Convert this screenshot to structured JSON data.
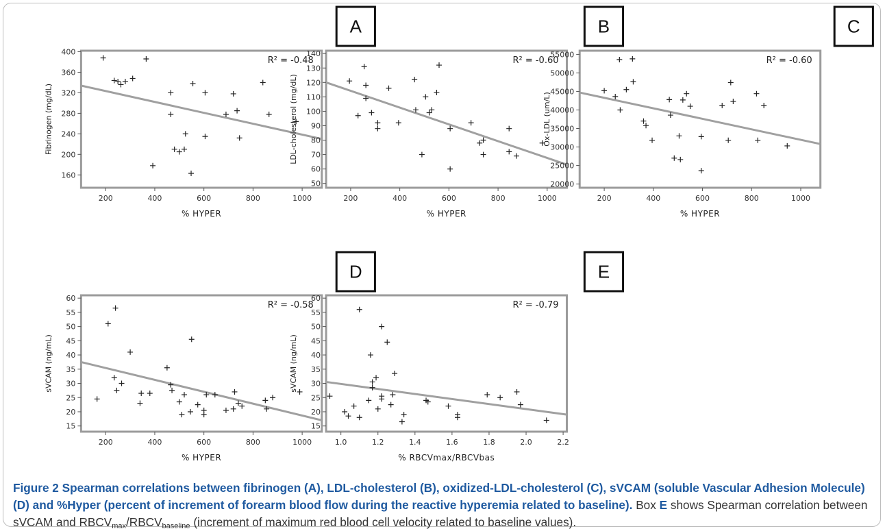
{
  "chart_data": [
    {
      "type": "scatter",
      "panel": "A",
      "xlabel": "% HYPER",
      "ylabel": "Fibrinogen (mg/dL)",
      "xlim": [
        100,
        1080
      ],
      "ylim": [
        135,
        402
      ],
      "xticks": [
        200,
        400,
        600,
        800,
        1000
      ],
      "yticks": [
        160,
        200,
        240,
        280,
        320,
        360,
        400
      ],
      "annotation": "R² = -0.48",
      "points": [
        [
          190,
          388
        ],
        [
          235,
          344
        ],
        [
          250,
          342
        ],
        [
          262,
          336
        ],
        [
          280,
          342
        ],
        [
          310,
          348
        ],
        [
          365,
          386
        ],
        [
          392,
          178
        ],
        [
          465,
          320
        ],
        [
          465,
          278
        ],
        [
          480,
          210
        ],
        [
          500,
          205
        ],
        [
          520,
          210
        ],
        [
          525,
          240
        ],
        [
          548,
          163
        ],
        [
          555,
          338
        ],
        [
          605,
          320
        ],
        [
          605,
          235
        ],
        [
          690,
          278
        ],
        [
          720,
          318
        ],
        [
          735,
          285
        ],
        [
          745,
          232
        ],
        [
          840,
          340
        ],
        [
          865,
          278
        ],
        [
          975,
          264
        ]
      ],
      "trendline": [
        [
          100,
          334
        ],
        [
          1080,
          230
        ]
      ]
    },
    {
      "type": "scatter",
      "panel": "B",
      "xlabel": "% HYPER",
      "ylabel": "LDL-cholesterol (mg/dL)",
      "xlim": [
        100,
        1080
      ],
      "ylim": [
        47,
        142
      ],
      "xticks": [
        200,
        400,
        600,
        800,
        1000
      ],
      "yticks": [
        50,
        60,
        70,
        80,
        90,
        100,
        110,
        120,
        130,
        140
      ],
      "annotation": "R² = -0.60",
      "points": [
        [
          195,
          121
        ],
        [
          230,
          97
        ],
        [
          255,
          131
        ],
        [
          262,
          118
        ],
        [
          262,
          109
        ],
        [
          285,
          99
        ],
        [
          310,
          92
        ],
        [
          310,
          88
        ],
        [
          355,
          116
        ],
        [
          395,
          92
        ],
        [
          460,
          122
        ],
        [
          465,
          101
        ],
        [
          490,
          70
        ],
        [
          505,
          110
        ],
        [
          520,
          99
        ],
        [
          530,
          101
        ],
        [
          550,
          113
        ],
        [
          560,
          132
        ],
        [
          605,
          88
        ],
        [
          605,
          60
        ],
        [
          690,
          92
        ],
        [
          725,
          78
        ],
        [
          740,
          80
        ],
        [
          740,
          70
        ],
        [
          845,
          88
        ],
        [
          845,
          72
        ],
        [
          875,
          69
        ],
        [
          980,
          78
        ]
      ],
      "trendline": [
        [
          100,
          120
        ],
        [
          1080,
          63
        ]
      ]
    },
    {
      "type": "scatter",
      "panel": "C",
      "xlabel": "% HYPER",
      "ylabel": "Ox-LDL (um/L)",
      "xlim": [
        100,
        1080
      ],
      "ylim": [
        19000,
        56000
      ],
      "xticks": [
        200,
        400,
        600,
        800,
        1000
      ],
      "yticks": [
        20000,
        25000,
        30000,
        35000,
        40000,
        45000,
        50000,
        55000
      ],
      "annotation": "R² = -0.60",
      "points": [
        [
          200,
          45200
        ],
        [
          245,
          43600
        ],
        [
          262,
          53600
        ],
        [
          265,
          40000
        ],
        [
          290,
          45500
        ],
        [
          315,
          53800
        ],
        [
          318,
          47600
        ],
        [
          360,
          37000
        ],
        [
          370,
          35800
        ],
        [
          395,
          31800
        ],
        [
          465,
          42800
        ],
        [
          470,
          38600
        ],
        [
          485,
          27000
        ],
        [
          505,
          33000
        ],
        [
          510,
          26600
        ],
        [
          520,
          42700
        ],
        [
          535,
          44400
        ],
        [
          550,
          41000
        ],
        [
          595,
          23600
        ],
        [
          595,
          32800
        ],
        [
          680,
          41200
        ],
        [
          705,
          31800
        ],
        [
          715,
          47400
        ],
        [
          725,
          42300
        ],
        [
          820,
          44400
        ],
        [
          825,
          31800
        ],
        [
          850,
          41200
        ],
        [
          945,
          30300
        ]
      ],
      "trendline": [
        [
          100,
          44700
        ],
        [
          1080,
          30800
        ]
      ]
    },
    {
      "type": "scatter",
      "panel": "D",
      "xlabel": "% HYPER",
      "ylabel": "sVCAM (ng/mL)",
      "xlim": [
        100,
        1080
      ],
      "ylim": [
        13,
        61
      ],
      "xticks": [
        200,
        400,
        600,
        800,
        1000
      ],
      "yticks": [
        15,
        20,
        25,
        30,
        35,
        40,
        45,
        50,
        55,
        60
      ],
      "annotation": "R² = -0.58",
      "points": [
        [
          165,
          24.5
        ],
        [
          210,
          51
        ],
        [
          235,
          32
        ],
        [
          240,
          56.5
        ],
        [
          245,
          27.5
        ],
        [
          265,
          30
        ],
        [
          300,
          41
        ],
        [
          340,
          23
        ],
        [
          345,
          26.5
        ],
        [
          380,
          26.5
        ],
        [
          450,
          35.5
        ],
        [
          465,
          29.5
        ],
        [
          470,
          27.5
        ],
        [
          500,
          23.5
        ],
        [
          510,
          19
        ],
        [
          520,
          26
        ],
        [
          545,
          20
        ],
        [
          550,
          45.5
        ],
        [
          575,
          22.5
        ],
        [
          600,
          19
        ],
        [
          600,
          20.5
        ],
        [
          610,
          26
        ],
        [
          645,
          26
        ],
        [
          690,
          20.5
        ],
        [
          720,
          21
        ],
        [
          725,
          27
        ],
        [
          740,
          23
        ],
        [
          755,
          22
        ],
        [
          850,
          24
        ],
        [
          855,
          21
        ],
        [
          880,
          25
        ],
        [
          990,
          27
        ]
      ],
      "trendline": [
        [
          100,
          37.5
        ],
        [
          1080,
          17
        ]
      ]
    },
    {
      "type": "scatter",
      "panel": "E",
      "xlabel": "% RBCVmax/RBCVbas",
      "ylabel": "sVCAM (ng/mL)",
      "xlim": [
        0.92,
        2.22
      ],
      "ylim": [
        13,
        61
      ],
      "xticks": [
        1.0,
        1.2,
        1.4,
        1.6,
        1.8,
        2.0,
        2.2
      ],
      "xtick_labels": [
        "1.0",
        "1.2",
        "1.4",
        "1.6",
        "1.8",
        "2.0",
        "2.2"
      ],
      "yticks": [
        15,
        20,
        25,
        30,
        35,
        40,
        45,
        50,
        55,
        60
      ],
      "annotation": "R² = -0.79",
      "points": [
        [
          0.94,
          25.5
        ],
        [
          1.02,
          20
        ],
        [
          1.04,
          18.5
        ],
        [
          1.07,
          22
        ],
        [
          1.1,
          56
        ],
        [
          1.1,
          18
        ],
        [
          1.15,
          24
        ],
        [
          1.16,
          40
        ],
        [
          1.17,
          30.5
        ],
        [
          1.17,
          28.5
        ],
        [
          1.19,
          32
        ],
        [
          1.2,
          21
        ],
        [
          1.22,
          50
        ],
        [
          1.22,
          25.5
        ],
        [
          1.22,
          24.5
        ],
        [
          1.25,
          44.5
        ],
        [
          1.27,
          22.5
        ],
        [
          1.28,
          26
        ],
        [
          1.29,
          33.5
        ],
        [
          1.33,
          16.5
        ],
        [
          1.34,
          19
        ],
        [
          1.46,
          24
        ],
        [
          1.47,
          23.5
        ],
        [
          1.58,
          22
        ],
        [
          1.63,
          19
        ],
        [
          1.63,
          18
        ],
        [
          1.79,
          26
        ],
        [
          1.86,
          25
        ],
        [
          1.95,
          27
        ],
        [
          1.97,
          22.5
        ],
        [
          2.11,
          17
        ]
      ],
      "trendline": [
        [
          0.92,
          30.5
        ],
        [
          2.22,
          19
        ]
      ]
    }
  ],
  "caption": {
    "bold": "Figure 2 Spearman correlations between fibrinogen (A), LDL-cholesterol (B), oxidized-LDL-cholesterol (C), sVCAM (soluble Vascular Adhesion Molecule) (D) and %Hyper (percent of increment of forearm blood flow during the reactive hyperemia related to baseline).",
    "box_word": "Box",
    "box_letter": "E",
    "rest_1": "shows Spearman correlation between sVCAM and RBCV",
    "sub_max": "max",
    "slash": "/RBCV",
    "sub_baseline": "baseline",
    "rest_2": "(increment of maximum red blood cell velocity related to baseline values)."
  }
}
